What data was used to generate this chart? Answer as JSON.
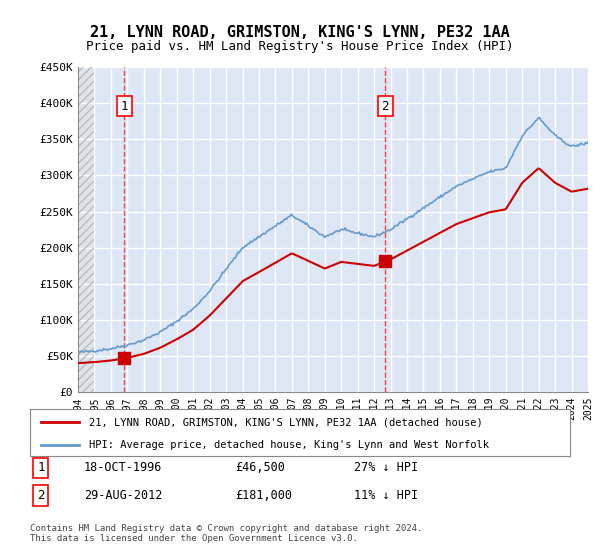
{
  "title": "21, LYNN ROAD, GRIMSTON, KING'S LYNN, PE32 1AA",
  "subtitle": "Price paid vs. HM Land Registry's House Price Index (HPI)",
  "ylabel": "",
  "ylim": [
    0,
    450000
  ],
  "yticks": [
    0,
    50000,
    100000,
    150000,
    200000,
    250000,
    300000,
    350000,
    400000,
    450000
  ],
  "ytick_labels": [
    "£0",
    "£50K",
    "£100K",
    "£150K",
    "£200K",
    "£250K",
    "£300K",
    "£350K",
    "£400K",
    "£450K"
  ],
  "background_color": "#ffffff",
  "plot_bg_color": "#dce6f5",
  "hatch_color": "#c0c0c0",
  "grid_color": "#ffffff",
  "sale_color": "#cc0000",
  "hpi_color": "#6699cc",
  "sale_label": "21, LYNN ROAD, GRIMSTON, KING'S LYNN, PE32 1AA (detached house)",
  "hpi_label": "HPI: Average price, detached house, King's Lynn and West Norfolk",
  "sale1_x": 1996.8,
  "sale1_y": 46500,
  "sale1_label": "1",
  "sale2_x": 2012.67,
  "sale2_y": 181000,
  "sale2_label": "2",
  "annotation1_date": "18-OCT-1996",
  "annotation1_price": "£46,500",
  "annotation1_hpi": "27% ↓ HPI",
  "annotation2_date": "29-AUG-2012",
  "annotation2_price": "£181,000",
  "annotation2_hpi": "11% ↓ HPI",
  "footer": "Contains HM Land Registry data © Crown copyright and database right 2024.\nThis data is licensed under the Open Government Licence v3.0.",
  "xmin": 1994,
  "xmax": 2025
}
